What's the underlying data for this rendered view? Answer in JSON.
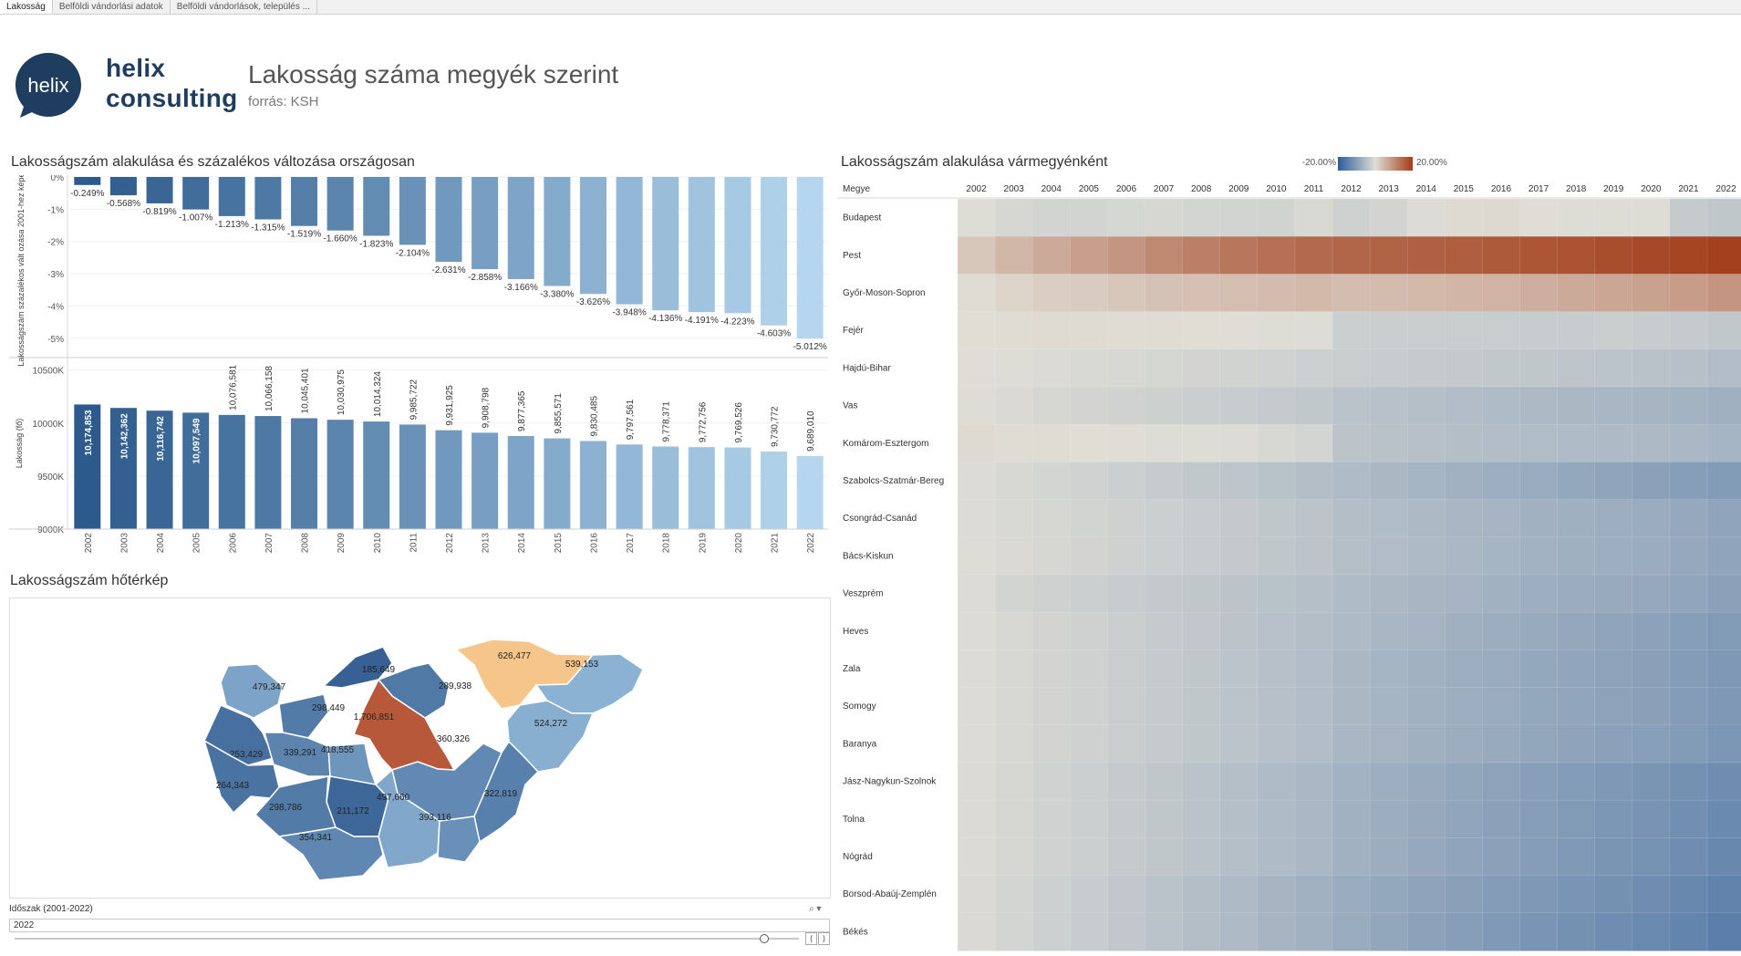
{
  "tabs": [
    {
      "label": "Lakosság"
    },
    {
      "label": "Belföldi vándorlási adatok"
    },
    {
      "label": "Belföldi vándorlások, település ..."
    }
  ],
  "brand": {
    "logo_text": "helix",
    "line1": "helix",
    "line2": "consulting"
  },
  "page": {
    "title": "Lakosság száma megyék szerint",
    "subtitle": "forrás: KSH"
  },
  "colors": {
    "dark_blue": "#2c5a8c",
    "light_blue": "#b5d6ee",
    "orange": "#f5a25a",
    "dark_orange": "#b3401e"
  },
  "chart_data": [
    {
      "type": "bar",
      "title": "Lakosságszám alakulása és százalékos változása országosan",
      "categories": [
        "2002",
        "2003",
        "2004",
        "2005",
        "2006",
        "2007",
        "2008",
        "2009",
        "2010",
        "2011",
        "2012",
        "2013",
        "2014",
        "2015",
        "2016",
        "2017",
        "2018",
        "2019",
        "2020",
        "2021",
        "2022"
      ],
      "series": [
        {
          "name": "pct_change",
          "ylabel": "Lakosságszám százalékos vált ozása 2001-hez képest",
          "ylim": [
            -5.6,
            0
          ],
          "yticks": [
            "0%",
            "-1%",
            "-2%",
            "-3%",
            "-4%",
            "-5%"
          ],
          "values": [
            -0.249,
            -0.568,
            -0.819,
            -1.007,
            -1.213,
            -1.315,
            -1.519,
            -1.66,
            -1.823,
            -2.104,
            -2.631,
            -2.858,
            -3.166,
            -3.38,
            -3.626,
            -3.948,
            -4.136,
            -4.191,
            -4.223,
            -4.603,
            -5.012
          ],
          "labels": [
            "-0.249%",
            "-0.568%",
            "-0.819%",
            "-1.007%",
            "-1.213%",
            "-1.315%",
            "-1.519%",
            "-1.660%",
            "-1.823%",
            "-2.104%",
            "-2.631%",
            "-2.858%",
            "-3.166%",
            "-3.380%",
            "-3.626%",
            "-3.948%",
            "-4.136%",
            "-4.191%",
            "-4.223%",
            "-4.603%",
            "-5.012%"
          ]
        },
        {
          "name": "population",
          "ylabel": "Lakosság (fő)",
          "ylim": [
            9000000,
            10600000
          ],
          "yticks": [
            "10500K",
            "10000K",
            "9500K",
            "9000K"
          ],
          "values": [
            10174853,
            10142362,
            10116742,
            10097549,
            10076581,
            10066158,
            10045401,
            10030975,
            10014324,
            9985722,
            9931925,
            9908798,
            9877365,
            9855571,
            9830485,
            9797561,
            9778371,
            9772756,
            9769526,
            9730772,
            9689010
          ],
          "labels": [
            "10,174,853",
            "10,142,362",
            "10,116,742",
            "10,097,549",
            "10,076,581",
            "10,066,158",
            "10,045,401",
            "10,030,975",
            "10,014,324",
            "9,985,722",
            "9,931,925",
            "9,908,798",
            "9,877,365",
            "9,855,571",
            "9,830,485",
            "9,797,561",
            "9,778,371",
            "9,772,756",
            "9,769,526",
            "9,730,772",
            "9,689,010"
          ]
        }
      ]
    },
    {
      "type": "map",
      "title": "Lakosságszám hőtérkép",
      "regions": [
        {
          "value": 479347,
          "label": "479,347"
        },
        {
          "value": 298449,
          "label": "298,449"
        },
        {
          "value": 185649,
          "label": "185,649"
        },
        {
          "value": 289938,
          "label": "289,938"
        },
        {
          "value": 626477,
          "label": "626,477"
        },
        {
          "value": 539153,
          "label": "539,153"
        },
        {
          "value": 1706851,
          "label": "1,706,851"
        },
        {
          "value": 524272,
          "label": "524,272"
        },
        {
          "value": 253429,
          "label": "253,429"
        },
        {
          "value": 339291,
          "label": "339,291"
        },
        {
          "value": 418555,
          "label": "418,555"
        },
        {
          "value": 360326,
          "label": "360,326"
        },
        {
          "value": 264343,
          "label": "264,343"
        },
        {
          "value": 322819,
          "label": "322,819"
        },
        {
          "value": 211172,
          "label": "211,172"
        },
        {
          "value": 497660,
          "label": "497,660"
        },
        {
          "value": 298786,
          "label": "298,786"
        },
        {
          "value": 393116,
          "label": "393,116"
        },
        {
          "value": 354341,
          "label": "354,341"
        }
      ]
    },
    {
      "type": "heatmap",
      "title": "Lakosságszám alakulása vármegyénként",
      "row_header": "Megye",
      "legend": {
        "min": "-20.00%",
        "max": "20.00%"
      },
      "years": [
        "2002",
        "2003",
        "2004",
        "2005",
        "2006",
        "2007",
        "2008",
        "2009",
        "2010",
        "2011",
        "2012",
        "2013",
        "2014",
        "2015",
        "2016",
        "2017",
        "2018",
        "2019",
        "2020",
        "2021",
        "2022"
      ],
      "rows": [
        {
          "name": "Budapest",
          "values": [
            -0.2,
            -1.1,
            -1.6,
            -1.6,
            -1.3,
            -1.1,
            -1.4,
            -1.6,
            -1.7,
            -0.8,
            -2.0,
            -1.5,
            -0.5,
            0.5,
            0.6,
            -0.1,
            -0.2,
            -0.3,
            -0.3,
            -3.0,
            -3.6
          ]
        },
        {
          "name": "Pest",
          "values": [
            3.0,
            4.8,
            6.4,
            7.8,
            9.0,
            10.6,
            11.8,
            12.8,
            13.6,
            14.4,
            14.8,
            15.2,
            15.6,
            15.9,
            16.3,
            16.8,
            17.3,
            17.8,
            18.4,
            18.9,
            19.5
          ]
        },
        {
          "name": "Győr-Moson-Sopron",
          "values": [
            0.3,
            1.4,
            2.0,
            2.4,
            2.9,
            3.4,
            3.7,
            4.0,
            4.2,
            4.6,
            4.1,
            4.3,
            4.6,
            4.9,
            5.3,
            5.8,
            6.4,
            6.9,
            7.5,
            8.0,
            8.9
          ]
        },
        {
          "name": "Fejér",
          "values": [
            0.1,
            0.3,
            0.4,
            0.4,
            0.3,
            0.2,
            0.1,
            -0.1,
            -0.3,
            -0.3,
            -2.4,
            -2.5,
            -2.6,
            -2.7,
            -2.7,
            -2.8,
            -2.8,
            -2.7,
            -2.8,
            -3.1,
            -3.4
          ]
        },
        {
          "name": "Hajdú-Bihar",
          "values": [
            -0.1,
            -0.3,
            -0.6,
            -0.8,
            -1.0,
            -1.3,
            -1.5,
            -1.7,
            -1.9,
            -2.1,
            -2.6,
            -2.8,
            -3.0,
            -3.2,
            -3.4,
            -3.6,
            -3.9,
            -4.1,
            -4.3,
            -4.6,
            -5.1
          ]
        },
        {
          "name": "Vas",
          "values": [
            -0.3,
            -0.7,
            -1.2,
            -1.5,
            -1.9,
            -2.2,
            -2.5,
            -2.8,
            -3.1,
            -3.4,
            -4.2,
            -4.5,
            -4.8,
            -5.1,
            -5.4,
            -5.7,
            -5.9,
            -6.1,
            -6.3,
            -6.7,
            -7.1
          ]
        },
        {
          "name": "Komárom-Esztergom",
          "values": [
            0.5,
            0.3,
            0.2,
            0.1,
            -0.1,
            -0.2,
            -0.3,
            -0.5,
            -0.9,
            -1.4,
            -4.0,
            -4.3,
            -4.6,
            -4.9,
            -5.1,
            -5.3,
            -5.5,
            -5.6,
            -5.7,
            -6.0,
            -6.4
          ]
        },
        {
          "name": "Szabolcs-Szatmár-Bereg",
          "values": [
            -0.4,
            -0.9,
            -1.4,
            -1.9,
            -2.4,
            -2.9,
            -3.4,
            -3.9,
            -4.4,
            -4.9,
            -5.4,
            -5.9,
            -6.4,
            -6.9,
            -7.4,
            -7.9,
            -8.4,
            -8.9,
            -9.4,
            -9.9,
            -10.4
          ]
        },
        {
          "name": "Csongrád-Csanád",
          "values": [
            -0.4,
            -0.8,
            -1.2,
            -1.6,
            -2.0,
            -2.4,
            -2.8,
            -3.2,
            -3.6,
            -4.0,
            -4.9,
            -5.3,
            -5.7,
            -6.1,
            -6.5,
            -6.9,
            -7.2,
            -7.5,
            -7.8,
            -8.3,
            -8.9
          ]
        },
        {
          "name": "Bács-Kiskun",
          "values": [
            -0.3,
            -0.7,
            -1.1,
            -1.5,
            -2.0,
            -2.4,
            -2.8,
            -3.2,
            -3.6,
            -4.0,
            -4.8,
            -5.2,
            -5.6,
            -6.0,
            -6.4,
            -6.8,
            -7.2,
            -7.5,
            -7.8,
            -8.3,
            -8.9
          ]
        },
        {
          "name": "Veszprém",
          "values": [
            -0.4,
            -1.6,
            -2.0,
            -2.4,
            -2.8,
            -3.2,
            -3.6,
            -4.0,
            -4.4,
            -4.8,
            -5.4,
            -5.8,
            -6.2,
            -6.6,
            -7.0,
            -7.4,
            -7.7,
            -8.0,
            -8.3,
            -8.8,
            -9.4
          ]
        },
        {
          "name": "Heves",
          "values": [
            -0.5,
            -1.0,
            -1.5,
            -2.0,
            -2.5,
            -3.0,
            -3.5,
            -4.0,
            -4.5,
            -5.0,
            -5.6,
            -6.1,
            -6.6,
            -7.1,
            -7.6,
            -8.1,
            -8.5,
            -8.9,
            -9.3,
            -9.9,
            -10.6
          ]
        },
        {
          "name": "Zala",
          "values": [
            -0.5,
            -1.0,
            -1.5,
            -2.0,
            -2.6,
            -3.1,
            -3.6,
            -4.1,
            -4.6,
            -5.1,
            -5.9,
            -6.4,
            -6.9,
            -7.4,
            -7.9,
            -8.4,
            -8.8,
            -9.2,
            -9.6,
            -10.2,
            -10.9
          ]
        },
        {
          "name": "Somogy",
          "values": [
            -0.5,
            -1.0,
            -1.5,
            -2.0,
            -2.6,
            -3.1,
            -3.6,
            -4.1,
            -4.6,
            -5.1,
            -5.9,
            -6.4,
            -6.9,
            -7.4,
            -7.9,
            -8.4,
            -8.8,
            -9.2,
            -9.6,
            -10.2,
            -10.9
          ]
        },
        {
          "name": "Baranya",
          "values": [
            -0.5,
            -1.0,
            -1.5,
            -2.0,
            -2.6,
            -3.1,
            -3.6,
            -4.1,
            -4.6,
            -5.1,
            -6.1,
            -6.6,
            -7.1,
            -7.6,
            -8.1,
            -8.6,
            -9.0,
            -9.4,
            -9.8,
            -10.4,
            -11.1
          ]
        },
        {
          "name": "Jász-Nagykun-Szolnok",
          "values": [
            -0.6,
            -1.2,
            -1.8,
            -2.4,
            -3.0,
            -3.6,
            -4.2,
            -4.8,
            -5.4,
            -6.0,
            -6.8,
            -7.4,
            -8.0,
            -8.6,
            -9.2,
            -9.8,
            -10.3,
            -10.8,
            -11.3,
            -11.9,
            -12.6
          ]
        },
        {
          "name": "Tolna",
          "values": [
            -0.6,
            -1.2,
            -1.8,
            -2.4,
            -3.0,
            -3.6,
            -4.2,
            -4.8,
            -5.4,
            -6.0,
            -7.0,
            -7.6,
            -8.2,
            -8.8,
            -9.4,
            -10.0,
            -10.6,
            -11.1,
            -11.6,
            -12.3,
            -13.1
          ]
        },
        {
          "name": "Nógrád",
          "values": [
            -0.6,
            -1.2,
            -1.8,
            -2.4,
            -3.0,
            -3.6,
            -4.2,
            -4.8,
            -5.4,
            -6.0,
            -7.0,
            -7.6,
            -8.3,
            -8.9,
            -9.5,
            -10.1,
            -10.7,
            -11.3,
            -11.8,
            -12.5,
            -13.3
          ]
        },
        {
          "name": "Borsod-Abaúj-Zemplén",
          "values": [
            -0.7,
            -1.4,
            -2.1,
            -2.8,
            -3.5,
            -4.2,
            -4.9,
            -5.6,
            -6.3,
            -7.0,
            -7.8,
            -8.4,
            -9.0,
            -9.6,
            -10.2,
            -10.8,
            -11.4,
            -12.0,
            -12.6,
            -13.3,
            -14.1
          ]
        },
        {
          "name": "Békés",
          "values": [
            -0.7,
            -1.4,
            -2.1,
            -2.8,
            -3.5,
            -4.2,
            -4.9,
            -5.6,
            -6.3,
            -7.0,
            -7.9,
            -8.6,
            -9.3,
            -10.0,
            -10.7,
            -11.4,
            -12.0,
            -12.6,
            -13.2,
            -13.9,
            -14.8
          ]
        }
      ]
    }
  ],
  "filter": {
    "title": "Időszak (2001-2022)",
    "value": "2022",
    "icons": "⌕ ▾",
    "prev": "⟨",
    "next": "⟩"
  }
}
